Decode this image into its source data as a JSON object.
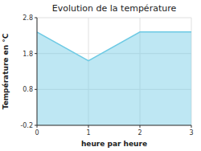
{
  "chart_data": {
    "type": "area",
    "title": "Evolution de la température",
    "x_label": "heure par heure",
    "y_label": "Température en °C",
    "x": [
      0,
      1,
      2,
      3
    ],
    "values": [
      2.4,
      1.6,
      2.4,
      2.4
    ],
    "xlim": [
      0,
      3
    ],
    "ylim": [
      -0.2,
      2.8
    ],
    "xticks": [
      0,
      1,
      2,
      3
    ],
    "yticks": [
      -0.2,
      0.8,
      1.8,
      2.8
    ],
    "color": "#6ecae4",
    "grid": true
  }
}
